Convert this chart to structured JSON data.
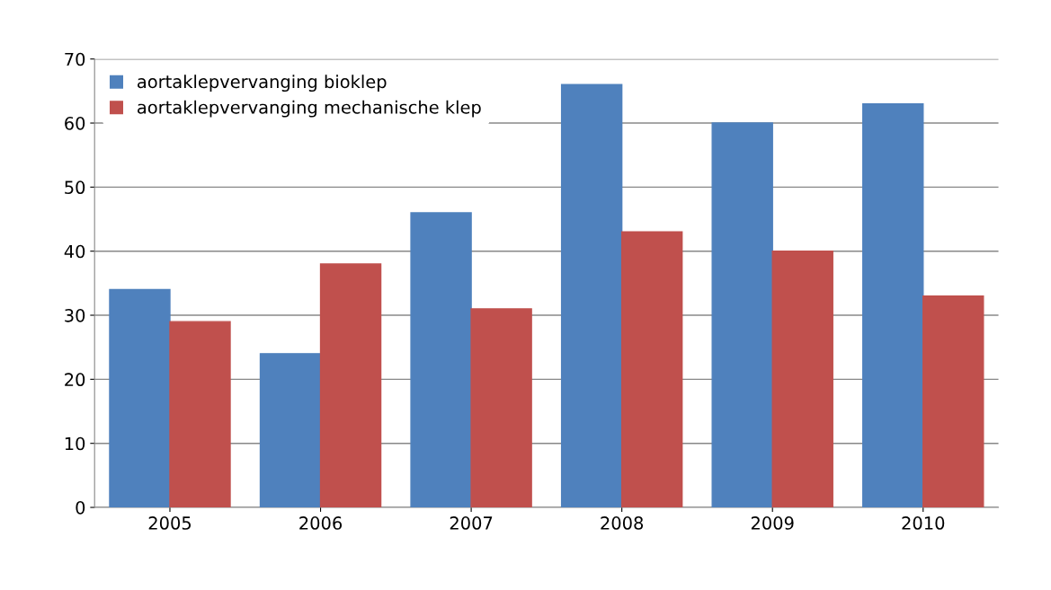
{
  "chart_data": {
    "type": "bar",
    "categories": [
      "2005",
      "2006",
      "2007",
      "2008",
      "2009",
      "2010"
    ],
    "series": [
      {
        "name": "aortaklepvervanging bioklep",
        "color": "#4f81bd",
        "values": [
          34,
          24,
          46,
          66,
          60,
          63
        ]
      },
      {
        "name": "aortaklepvervanging mechanische klep",
        "color": "#c0504d",
        "values": [
          29,
          38,
          31,
          43,
          40,
          33
        ]
      }
    ],
    "ylim": [
      0,
      70
    ],
    "yticks": [
      0,
      10,
      20,
      30,
      40,
      50,
      60,
      70
    ],
    "grid": "y",
    "legend": "top left"
  }
}
